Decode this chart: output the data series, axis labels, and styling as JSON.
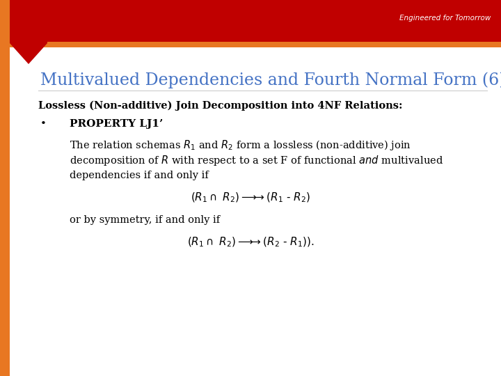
{
  "title": "Multivalued Dependencies and Fourth Normal Form (6)",
  "title_color": "#4472C4",
  "title_fontsize": 17,
  "bg_color": "#FFFFFF",
  "header_red": "#C00000",
  "header_orange": "#E87722",
  "engineered_text": "Engineered for Tomorrow",
  "subtitle": "Lossless (Non-additive) Join Decomposition into 4NF Relations:",
  "bullet_header": "PROPERTY LJ1’",
  "or_line": "or by symmetry, if and only if",
  "line3": "dependencies if and only if",
  "font_size_body": 10.5,
  "font_size_subtitle": 10.5,
  "font_size_title": 17
}
